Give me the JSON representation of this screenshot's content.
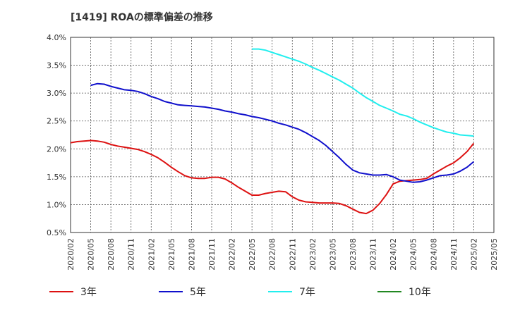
{
  "chart_data": {
    "type": "line",
    "title": "[1419]  ROAの標準偏差の推移",
    "xlabel": "",
    "ylabel": "",
    "ylim": [
      0.005,
      0.04
    ],
    "y_ticks": [
      "0.5%",
      "1.0%",
      "1.5%",
      "2.0%",
      "2.5%",
      "3.0%",
      "3.5%",
      "4.0%"
    ],
    "x_ticks": [
      "2020/02",
      "2020/05",
      "2020/08",
      "2020/11",
      "2021/02",
      "2021/05",
      "2021/08",
      "2021/11",
      "2022/02",
      "2022/05",
      "2022/08",
      "2022/11",
      "2023/02",
      "2023/05",
      "2023/08",
      "2023/11",
      "2024/02",
      "2024/05",
      "2024/08",
      "2024/11",
      "2025/02",
      "2025/05"
    ],
    "grid": true,
    "legend_position": "bottom",
    "series": [
      {
        "name": "3年",
        "color": "#dd1111",
        "points": [
          [
            "2020/02",
            0.0211
          ],
          [
            "2020/03",
            0.0213
          ],
          [
            "2020/04",
            0.0214
          ],
          [
            "2020/05",
            0.0215
          ],
          [
            "2020/06",
            0.0214
          ],
          [
            "2020/07",
            0.0212
          ],
          [
            "2020/08",
            0.0208
          ],
          [
            "2020/09",
            0.0205
          ],
          [
            "2020/10",
            0.0203
          ],
          [
            "2020/11",
            0.0201
          ],
          [
            "2020/12",
            0.0199
          ],
          [
            "2021/01",
            0.0195
          ],
          [
            "2021/02",
            0.019
          ],
          [
            "2021/03",
            0.0184
          ],
          [
            "2021/04",
            0.0176
          ],
          [
            "2021/05",
            0.0167
          ],
          [
            "2021/06",
            0.0159
          ],
          [
            "2021/07",
            0.0152
          ],
          [
            "2021/08",
            0.0148
          ],
          [
            "2021/09",
            0.0147
          ],
          [
            "2021/10",
            0.0147
          ],
          [
            "2021/11",
            0.0149
          ],
          [
            "2021/12",
            0.0149
          ],
          [
            "2022/01",
            0.0146
          ],
          [
            "2022/02",
            0.0139
          ],
          [
            "2022/03",
            0.0131
          ],
          [
            "2022/04",
            0.0124
          ],
          [
            "2022/05",
            0.0117
          ],
          [
            "2022/06",
            0.0117
          ],
          [
            "2022/07",
            0.012
          ],
          [
            "2022/08",
            0.0122
          ],
          [
            "2022/09",
            0.0124
          ],
          [
            "2022/10",
            0.0123
          ],
          [
            "2022/11",
            0.0114
          ],
          [
            "2022/12",
            0.0108
          ],
          [
            "2023/01",
            0.0105
          ],
          [
            "2023/02",
            0.0104
          ],
          [
            "2023/03",
            0.0103
          ],
          [
            "2023/04",
            0.0103
          ],
          [
            "2023/05",
            0.0103
          ],
          [
            "2023/06",
            0.0102
          ],
          [
            "2023/07",
            0.0098
          ],
          [
            "2023/08",
            0.0092
          ],
          [
            "2023/09",
            0.0086
          ],
          [
            "2023/10",
            0.0084
          ],
          [
            "2023/11",
            0.009
          ],
          [
            "2023/12",
            0.0102
          ],
          [
            "2024/01",
            0.0118
          ],
          [
            "2024/02",
            0.0137
          ],
          [
            "2024/03",
            0.0142
          ],
          [
            "2024/04",
            0.0143
          ],
          [
            "2024/05",
            0.0144
          ],
          [
            "2024/06",
            0.0145
          ],
          [
            "2024/07",
            0.0147
          ],
          [
            "2024/08",
            0.0155
          ],
          [
            "2024/09",
            0.0162
          ],
          [
            "2024/10",
            0.0169
          ],
          [
            "2024/11",
            0.0175
          ],
          [
            "2024/12",
            0.0184
          ],
          [
            "2025/01",
            0.0195
          ],
          [
            "2025/02",
            0.021
          ]
        ]
      },
      {
        "name": "5年",
        "color": "#1010cc",
        "points": [
          [
            "2020/05",
            0.0314
          ],
          [
            "2020/06",
            0.0317
          ],
          [
            "2020/07",
            0.0316
          ],
          [
            "2020/08",
            0.0312
          ],
          [
            "2020/09",
            0.0309
          ],
          [
            "2020/10",
            0.0306
          ],
          [
            "2020/11",
            0.0305
          ],
          [
            "2020/12",
            0.0303
          ],
          [
            "2021/01",
            0.0299
          ],
          [
            "2021/02",
            0.0294
          ],
          [
            "2021/03",
            0.029
          ],
          [
            "2021/04",
            0.0285
          ],
          [
            "2021/05",
            0.0282
          ],
          [
            "2021/06",
            0.0279
          ],
          [
            "2021/07",
            0.0278
          ],
          [
            "2021/08",
            0.0277
          ],
          [
            "2021/09",
            0.0276
          ],
          [
            "2021/10",
            0.0275
          ],
          [
            "2021/11",
            0.0273
          ],
          [
            "2021/12",
            0.0271
          ],
          [
            "2022/01",
            0.0268
          ],
          [
            "2022/02",
            0.0266
          ],
          [
            "2022/03",
            0.0263
          ],
          [
            "2022/04",
            0.0261
          ],
          [
            "2022/05",
            0.0258
          ],
          [
            "2022/06",
            0.0256
          ],
          [
            "2022/07",
            0.0253
          ],
          [
            "2022/08",
            0.025
          ],
          [
            "2022/09",
            0.0246
          ],
          [
            "2022/10",
            0.0243
          ],
          [
            "2022/11",
            0.0239
          ],
          [
            "2022/12",
            0.0235
          ],
          [
            "2023/01",
            0.0229
          ],
          [
            "2023/02",
            0.0222
          ],
          [
            "2023/03",
            0.0215
          ],
          [
            "2023/04",
            0.0206
          ],
          [
            "2023/05",
            0.0195
          ],
          [
            "2023/06",
            0.0184
          ],
          [
            "2023/07",
            0.0172
          ],
          [
            "2023/08",
            0.0162
          ],
          [
            "2023/09",
            0.0157
          ],
          [
            "2023/10",
            0.0155
          ],
          [
            "2023/11",
            0.0153
          ],
          [
            "2023/12",
            0.0153
          ],
          [
            "2024/01",
            0.0154
          ],
          [
            "2024/02",
            0.015
          ],
          [
            "2024/03",
            0.0144
          ],
          [
            "2024/04",
            0.0142
          ],
          [
            "2024/05",
            0.014
          ],
          [
            "2024/06",
            0.0141
          ],
          [
            "2024/07",
            0.0144
          ],
          [
            "2024/08",
            0.0148
          ],
          [
            "2024/09",
            0.0152
          ],
          [
            "2024/10",
            0.0153
          ],
          [
            "2024/11",
            0.0155
          ],
          [
            "2024/12",
            0.016
          ],
          [
            "2025/01",
            0.0167
          ],
          [
            "2025/02",
            0.0177
          ]
        ]
      },
      {
        "name": "7年",
        "color": "#22eeee",
        "points": [
          [
            "2022/05",
            0.0379
          ],
          [
            "2022/06",
            0.0379
          ],
          [
            "2022/07",
            0.0377
          ],
          [
            "2022/08",
            0.0373
          ],
          [
            "2022/09",
            0.0369
          ],
          [
            "2022/10",
            0.0365
          ],
          [
            "2022/11",
            0.0361
          ],
          [
            "2022/12",
            0.0357
          ],
          [
            "2023/01",
            0.0352
          ],
          [
            "2023/02",
            0.0346
          ],
          [
            "2023/03",
            0.0341
          ],
          [
            "2023/04",
            0.0335
          ],
          [
            "2023/05",
            0.0329
          ],
          [
            "2023/06",
            0.0323
          ],
          [
            "2023/07",
            0.0316
          ],
          [
            "2023/08",
            0.0309
          ],
          [
            "2023/09",
            0.03
          ],
          [
            "2023/10",
            0.0292
          ],
          [
            "2023/11",
            0.0285
          ],
          [
            "2023/12",
            0.0278
          ],
          [
            "2024/01",
            0.0273
          ],
          [
            "2024/02",
            0.0268
          ],
          [
            "2024/03",
            0.0262
          ],
          [
            "2024/04",
            0.0259
          ],
          [
            "2024/05",
            0.0254
          ],
          [
            "2024/06",
            0.0248
          ],
          [
            "2024/07",
            0.0243
          ],
          [
            "2024/08",
            0.0238
          ],
          [
            "2024/09",
            0.0234
          ],
          [
            "2024/10",
            0.023
          ],
          [
            "2024/11",
            0.0228
          ],
          [
            "2024/12",
            0.0225
          ],
          [
            "2025/01",
            0.0224
          ],
          [
            "2025/02",
            0.0223
          ]
        ]
      },
      {
        "name": "10年",
        "color": "#228822",
        "points": []
      }
    ]
  }
}
